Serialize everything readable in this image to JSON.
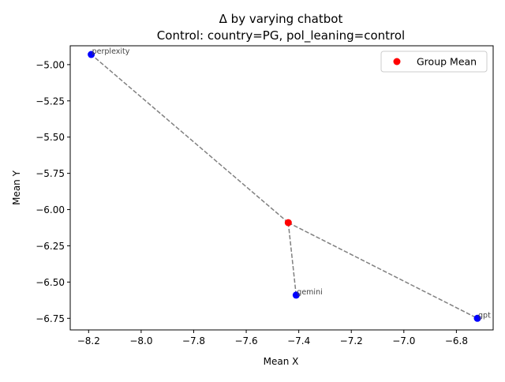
{
  "chart_data": {
    "type": "scatter",
    "title_line1": "Δ by varying chatbot",
    "title_line2": "Control: country=PG, pol_leaning=control",
    "xlabel": "Mean X",
    "ylabel": "Mean Y",
    "xlim": [
      -8.27,
      -6.66
    ],
    "ylim": [
      -6.83,
      -4.87
    ],
    "xticks": [
      -8.2,
      -8.0,
      -7.8,
      -7.6,
      -7.4,
      -7.2,
      -7.0,
      -6.8
    ],
    "xtick_labels": [
      "−8.2",
      "−8.0",
      "−7.8",
      "−7.6",
      "−7.4",
      "−7.2",
      "−7.0",
      "−6.8"
    ],
    "yticks": [
      -5.0,
      -5.25,
      -5.5,
      -5.75,
      -6.0,
      -6.25,
      -6.5,
      -6.75
    ],
    "ytick_labels": [
      "−5.00",
      "−5.25",
      "−5.50",
      "−5.75",
      "−6.00",
      "−6.25",
      "−6.50",
      "−6.75"
    ],
    "group_mean": {
      "x": -7.44,
      "y": -6.09,
      "color": "#ff0000"
    },
    "points": [
      {
        "label": "perplexity",
        "x": -8.19,
        "y": -4.93,
        "color": "#0000ff"
      },
      {
        "label": "gemini",
        "x": -7.41,
        "y": -6.59,
        "color": "#0000ff"
      },
      {
        "label": "gpt",
        "x": -6.72,
        "y": -6.75,
        "color": "#0000ff"
      }
    ],
    "legend": {
      "position": "top-right",
      "entries": [
        {
          "label": "Group Mean",
          "color": "#ff0000"
        }
      ]
    },
    "line_color": "#808080",
    "grid": false
  }
}
